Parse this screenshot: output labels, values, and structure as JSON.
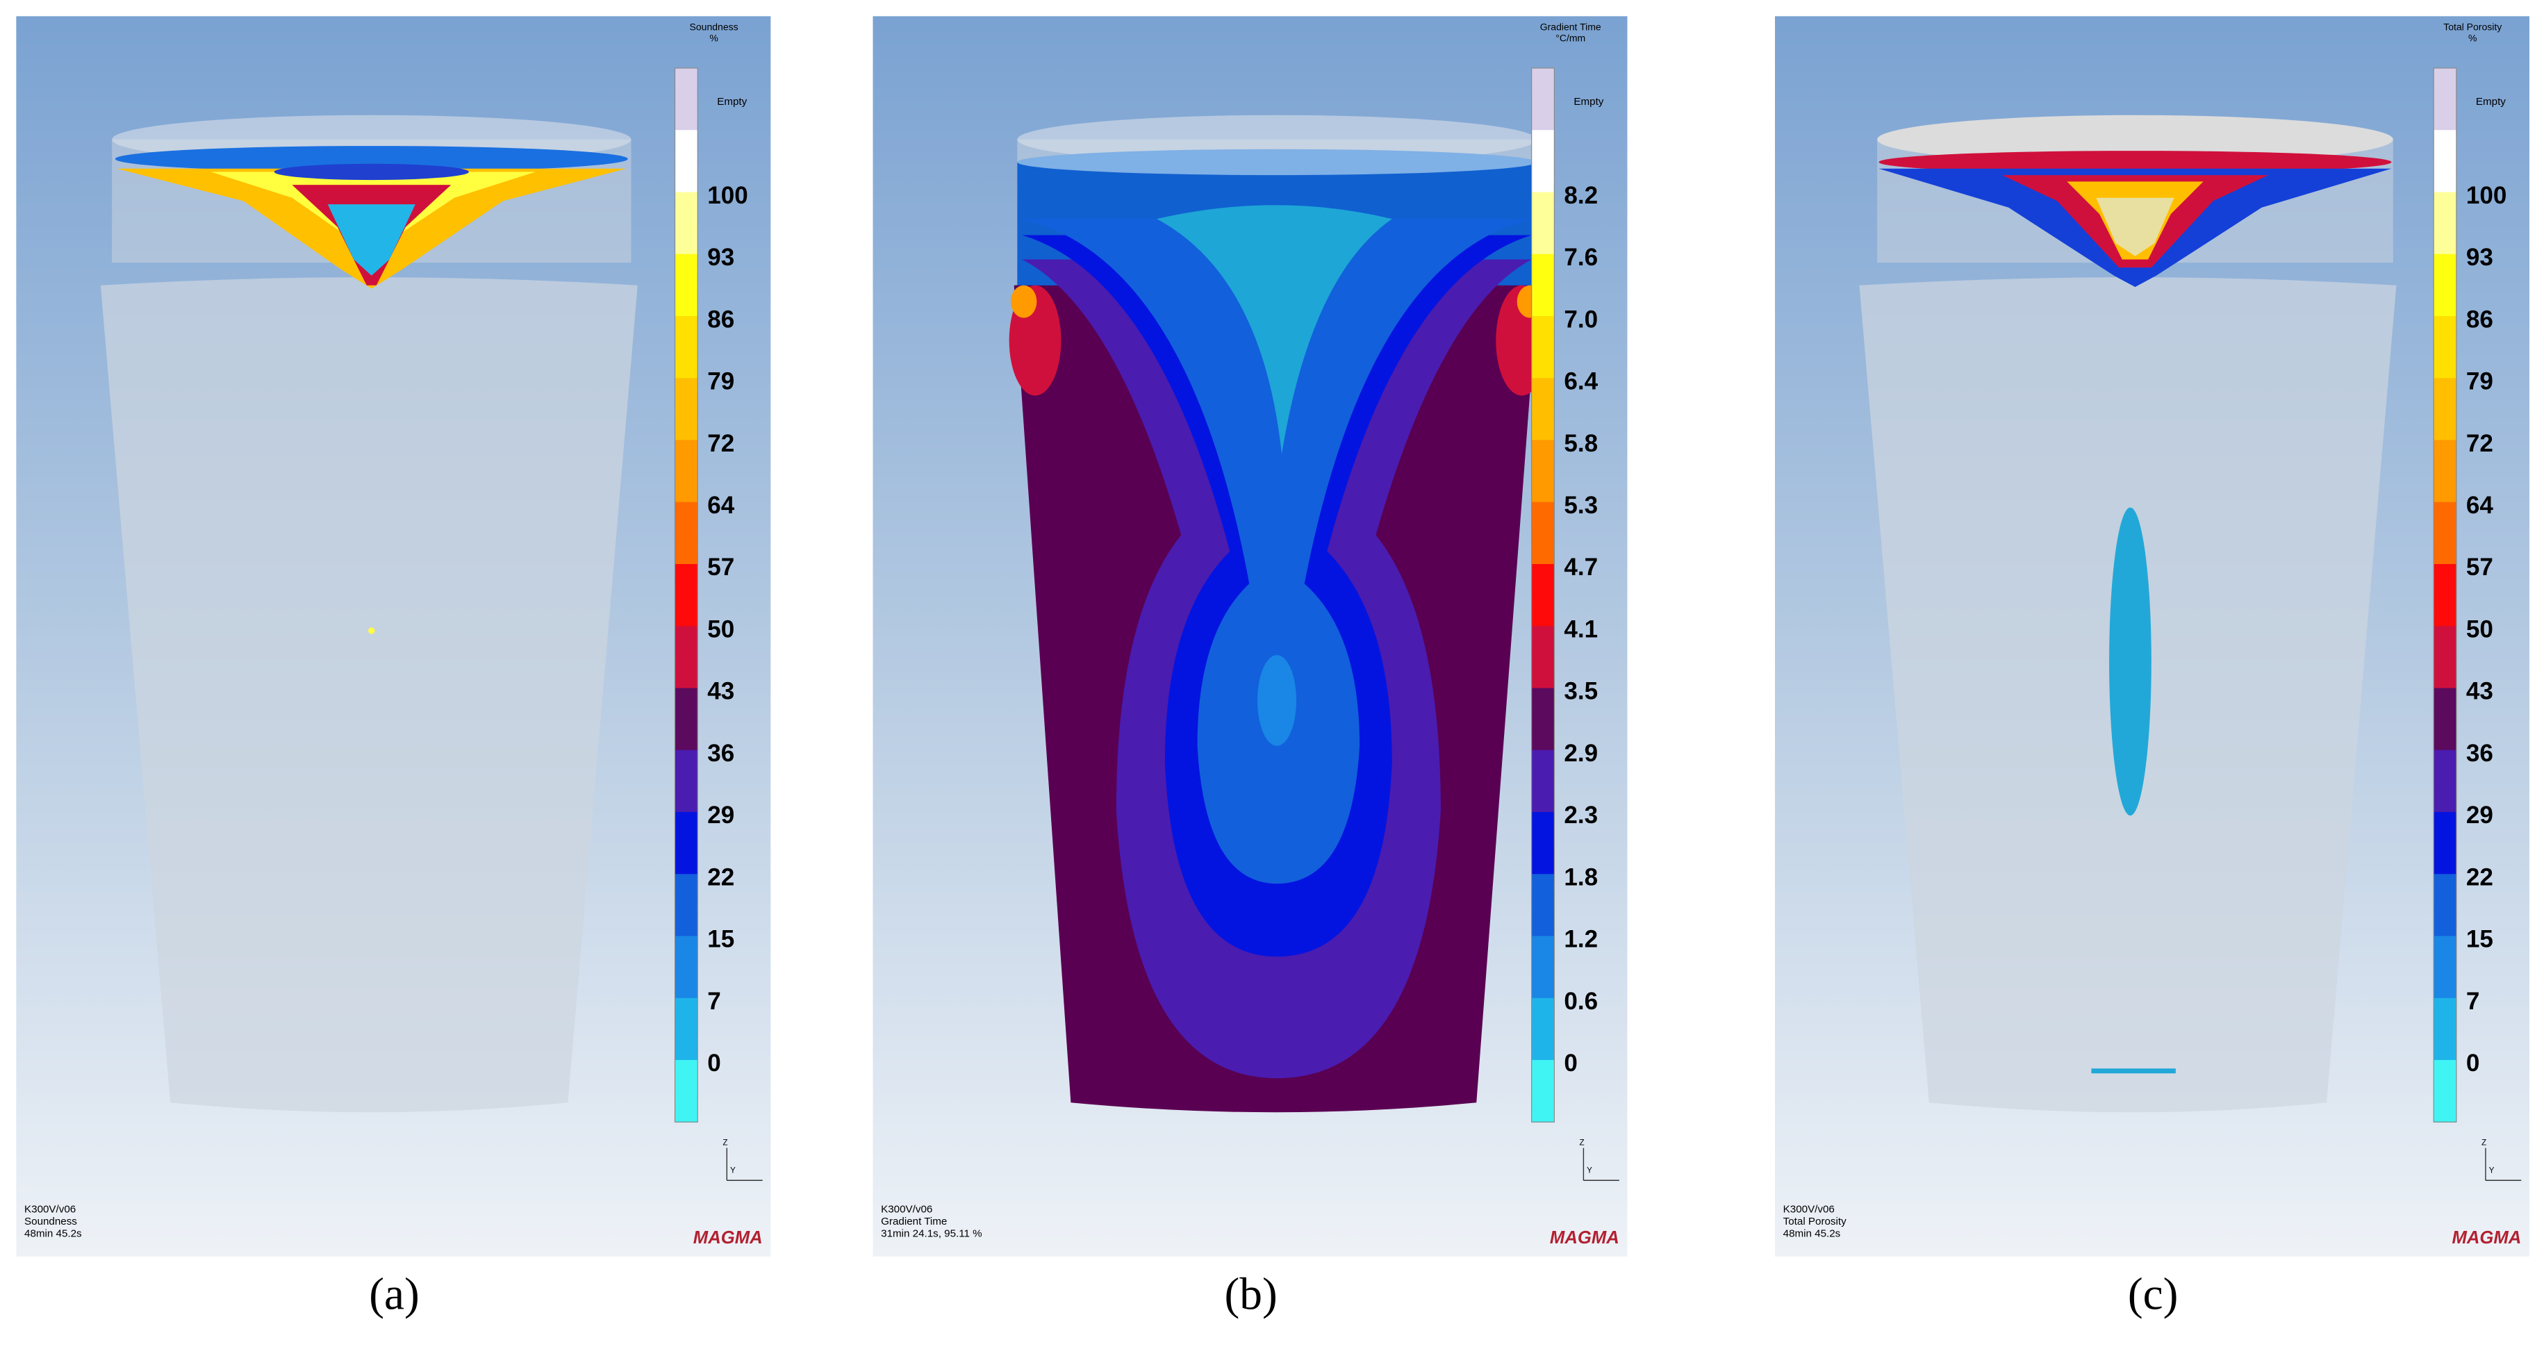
{
  "panels": [
    {
      "legend_title": "Soundness",
      "legend_unit": "%",
      "empty_label": "Empty",
      "scale": [
        "100",
        "93",
        "86",
        "79",
        "72",
        "64",
        "57",
        "50",
        "43",
        "36",
        "29",
        "22",
        "15",
        "7",
        "0"
      ],
      "axis_labels": [
        "Z",
        "Y"
      ],
      "footer": [
        "K300V/v06",
        "Soundness",
        "48min 45.2s"
      ],
      "logo": "MAGMA",
      "caption": "(a)"
    },
    {
      "legend_title": "Gradient Time",
      "legend_unit": "°C/mm",
      "empty_label": "Empty",
      "scale": [
        "8.2",
        "7.6",
        "7.0",
        "6.4",
        "5.8",
        "5.3",
        "4.7",
        "4.1",
        "3.5",
        "2.9",
        "2.3",
        "1.8",
        "1.2",
        "0.6",
        "0"
      ],
      "axis_labels": [
        "Z",
        "Y"
      ],
      "footer": [
        "K300V/v06",
        "Gradient Time",
        "31min 24.1s, 95.11 %"
      ],
      "logo": "MAGMA",
      "caption": "(b)"
    },
    {
      "legend_title": "Total Porosity",
      "legend_unit": "%",
      "empty_label": "Empty",
      "scale": [
        "100",
        "93",
        "86",
        "79",
        "72",
        "64",
        "57",
        "50",
        "43",
        "36",
        "29",
        "22",
        "15",
        "7",
        "0"
      ],
      "axis_labels": [
        "Z",
        "Y"
      ],
      "footer": [
        "K300V/v06",
        "Total Porosity",
        "48min 45.2s"
      ],
      "logo": "MAGMA",
      "caption": "(c)"
    }
  ]
}
